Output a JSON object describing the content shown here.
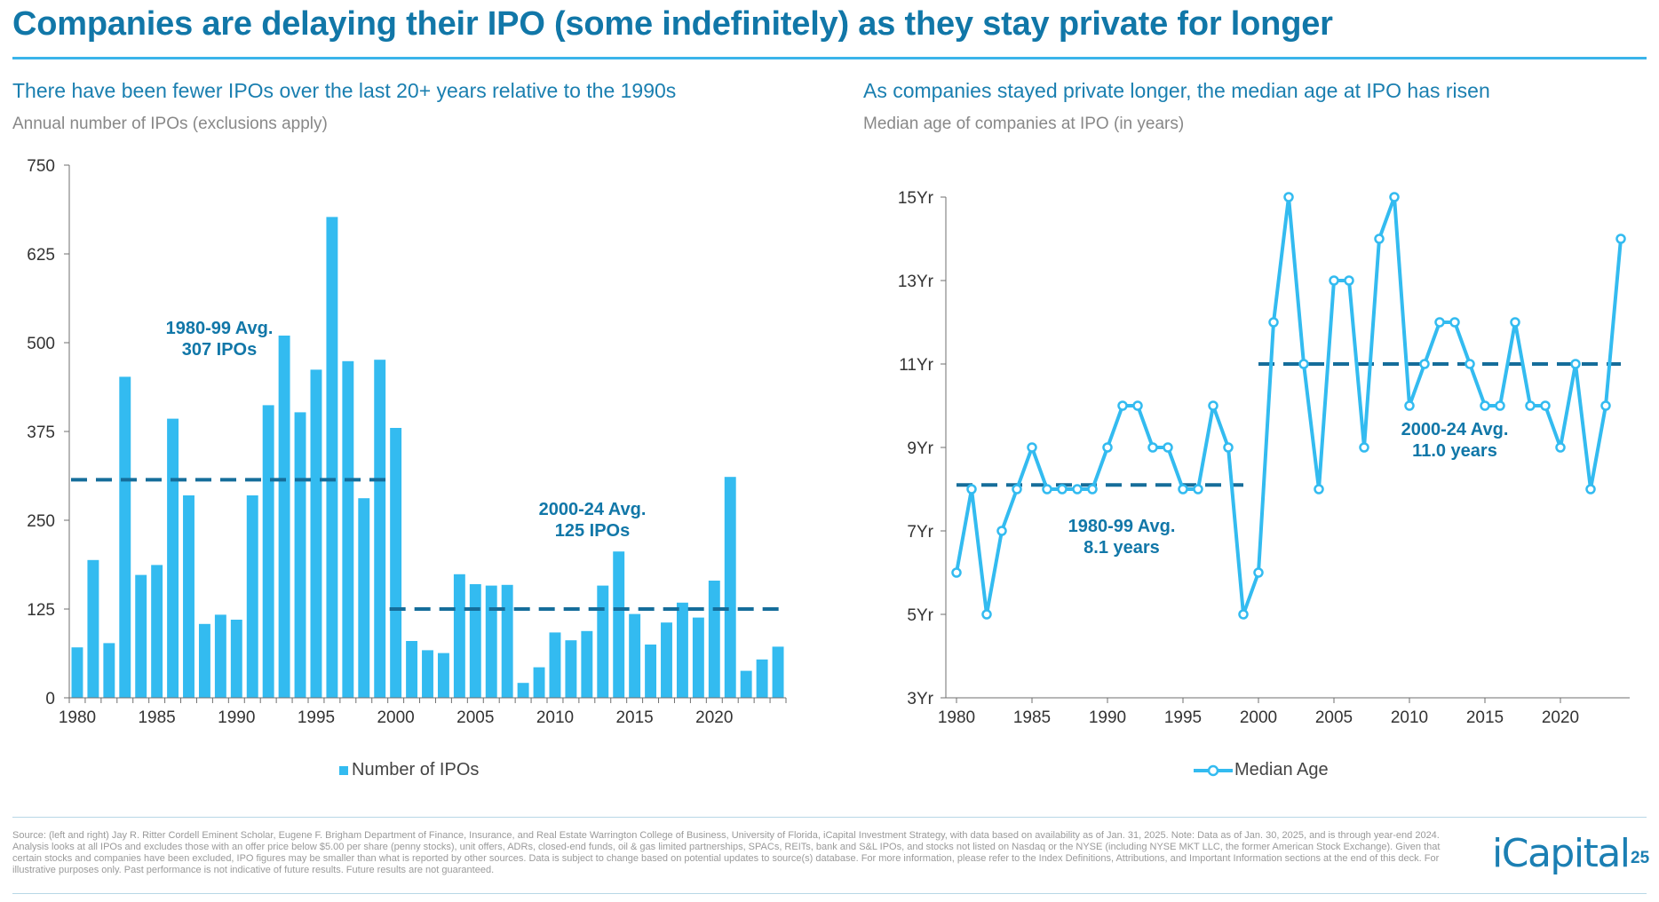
{
  "title": "Companies are delaying their IPO (some indefinitely) as they stay private for longer",
  "left": {
    "subtitle": "There have been fewer IPOs over the last 20+ years relative to the 1990s",
    "caption": "Annual number of IPOs (exclusions apply)",
    "legend": "Number of IPOs"
  },
  "right": {
    "subtitle": "As companies stayed private longer, the median age at IPO has risen",
    "caption": "Median age of companies at IPO (in years)",
    "legend": "Median Age"
  },
  "footnote": "Source: (left and right) Jay R. Ritter Cordell Eminent Scholar, Eugene F. Brigham Department of Finance, Insurance, and Real Estate Warrington College of Business, University of Florida, iCapital Investment Strategy, with data based on availability as of Jan. 31, 2025. Note: Data as of Jan. 30, 2025, and is through year-end 2024. Analysis looks at all IPOs and excludes those with an offer price below $5.00 per share (penny stocks), unit offers, ADRs, closed-end funds, oil & gas limited partnerships, SPACs, REITs, bank and S&L IPOs, and stocks not listed on Nasdaq or the NYSE (including NYSE MKT LLC, the former American Stock Exchange). Given that certain stocks and companies have been excluded, IPO figures may be smaller than what is reported by other sources. Data is subject to change based on potential updates to source(s) database. For more information, please refer to the Index Definitions, Attributions, and Important Information sections at the end of this deck. For illustrative purposes only. Past performance is not indicative of future results. Future results are not guaranteed.",
  "logo": "iCapital",
  "page_number": "25",
  "colors": {
    "accent": "#1177a8",
    "bar": "#33bbf0",
    "line": "#33bbf0",
    "avg": "#156d9a"
  },
  "chart_data": [
    {
      "type": "bar",
      "title": "",
      "xlabel": "",
      "ylabel": "",
      "ylim": [
        0,
        750
      ],
      "yticks": [
        0,
        125,
        250,
        375,
        500,
        625,
        750
      ],
      "x_tick_labels": [
        "1980",
        "1985",
        "1990",
        "1995",
        "2000",
        "2005",
        "2010",
        "2015",
        "2020"
      ],
      "categories": [
        1980,
        1981,
        1982,
        1983,
        1984,
        1985,
        1986,
        1987,
        1988,
        1989,
        1990,
        1991,
        1992,
        1993,
        1994,
        1995,
        1996,
        1997,
        1998,
        1999,
        2000,
        2001,
        2002,
        2003,
        2004,
        2005,
        2006,
        2007,
        2008,
        2009,
        2010,
        2011,
        2012,
        2013,
        2014,
        2015,
        2016,
        2017,
        2018,
        2019,
        2020,
        2021,
        2022,
        2023,
        2024
      ],
      "series": [
        {
          "name": "Number of IPOs",
          "values": [
            71,
            194,
            77,
            452,
            173,
            187,
            393,
            285,
            104,
            117,
            110,
            285,
            412,
            510,
            402,
            462,
            677,
            474,
            281,
            476,
            380,
            80,
            67,
            63,
            174,
            160,
            158,
            159,
            21,
            43,
            92,
            81,
            94,
            158,
            206,
            118,
            75,
            106,
            134,
            113,
            165,
            311,
            38,
            54,
            72
          ]
        }
      ],
      "averages": [
        {
          "label": "1980-99 Avg.",
          "value_label": "307 IPOs",
          "value": 307,
          "from": 1980,
          "to": 1999
        },
        {
          "label": "2000-24 Avg.",
          "value_label": "125 IPOs",
          "value": 125,
          "from": 2000,
          "to": 2024
        }
      ],
      "legend_position": "bottom"
    },
    {
      "type": "line",
      "title": "",
      "xlabel": "",
      "ylabel": "",
      "ylim": [
        3,
        15
      ],
      "yticks": [
        3,
        5,
        7,
        9,
        11,
        13,
        15
      ],
      "ytick_labels": [
        "3Yr",
        "5Yr",
        "7Yr",
        "9Yr",
        "11Yr",
        "13Yr",
        "15Yr"
      ],
      "x_tick_labels": [
        "1980",
        "1985",
        "1990",
        "1995",
        "2000",
        "2005",
        "2010",
        "2015",
        "2020"
      ],
      "x": [
        1980,
        1981,
        1982,
        1983,
        1984,
        1985,
        1986,
        1987,
        1988,
        1989,
        1990,
        1991,
        1992,
        1993,
        1994,
        1995,
        1996,
        1997,
        1998,
        1999,
        2000,
        2001,
        2002,
        2003,
        2004,
        2005,
        2006,
        2007,
        2008,
        2009,
        2010,
        2011,
        2012,
        2013,
        2014,
        2015,
        2016,
        2017,
        2018,
        2019,
        2020,
        2021,
        2022,
        2023,
        2024
      ],
      "series": [
        {
          "name": "Median Age",
          "values": [
            6,
            8,
            5,
            7,
            8,
            9,
            8,
            8,
            8,
            8,
            9,
            10,
            10,
            9,
            9,
            8,
            8,
            10,
            9,
            5,
            6,
            12,
            15,
            11,
            8,
            13,
            13,
            9,
            14,
            15,
            10,
            11,
            12,
            12,
            11,
            10,
            10,
            12,
            10,
            10,
            9,
            11,
            8,
            10,
            14
          ]
        }
      ],
      "averages": [
        {
          "label": "1980-99 Avg.",
          "value_label": "8.1 years",
          "value": 8.1,
          "from": 1980,
          "to": 1999
        },
        {
          "label": "2000-24 Avg.",
          "value_label": "11.0 years",
          "value": 11.0,
          "from": 2000,
          "to": 2024
        }
      ],
      "legend_position": "bottom"
    }
  ]
}
